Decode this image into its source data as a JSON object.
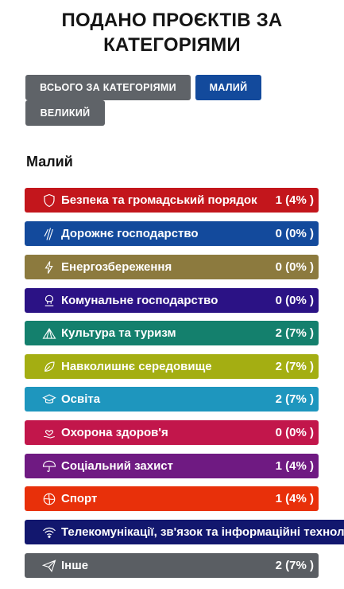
{
  "title": {
    "line1": "ПОДАНО ПРОЄКТІВ ЗА",
    "line2": "КАТЕГОРІЯМИ"
  },
  "tabs": [
    {
      "label": "ВСЬОГО ЗА КАТЕГОРІЯМИ"
    },
    {
      "label": "МАЛИЙ"
    },
    {
      "label": "ВЕЛИКИЙ"
    }
  ],
  "section_title": "Малий",
  "categories": [
    {
      "label": "Безпека та громадський порядок",
      "count": "1 (4% )",
      "color": "#c3161c",
      "icon": "shield-icon"
    },
    {
      "label": "Дорожнє господарство",
      "count": "0 (0% )",
      "color": "#134a9c",
      "icon": "road-icon"
    },
    {
      "label": "Енергозбереження",
      "count": "0 (0% )",
      "color": "#8c7a3e",
      "icon": "lightning-icon"
    },
    {
      "label": "Комунальне господарство",
      "count": "0 (0% )",
      "color": "#2b1285",
      "icon": "utilities-icon"
    },
    {
      "label": "Культура та туризм",
      "count": "2 (7% )",
      "color": "#14806d",
      "icon": "tent-icon"
    },
    {
      "label": "Навколишнє середовище",
      "count": "2 (7% )",
      "color": "#a4ae12",
      "icon": "leaf-icon"
    },
    {
      "label": "Освіта",
      "count": "2 (7% )",
      "color": "#1e96be",
      "icon": "graduation-cap-icon"
    },
    {
      "label": "Охорона здоров'я",
      "count": "0 (0% )",
      "color": "#c2164b",
      "icon": "hand-heart-icon"
    },
    {
      "label": "Соціальний захист",
      "count": "1 (4% )",
      "color": "#6f1a82",
      "icon": "umbrella-icon"
    },
    {
      "label": "Спорт",
      "count": "1 (4% )",
      "color": "#e8300a",
      "icon": "ball-icon"
    },
    {
      "label": "Телекомунікації, зв'язок та інформаційні технології",
      "count": "",
      "color": "#12176e",
      "icon": "wifi-icon"
    },
    {
      "label": "Інше",
      "count": "2 (7% )",
      "color": "#5a5e63",
      "icon": "paper-plane-icon"
    }
  ]
}
